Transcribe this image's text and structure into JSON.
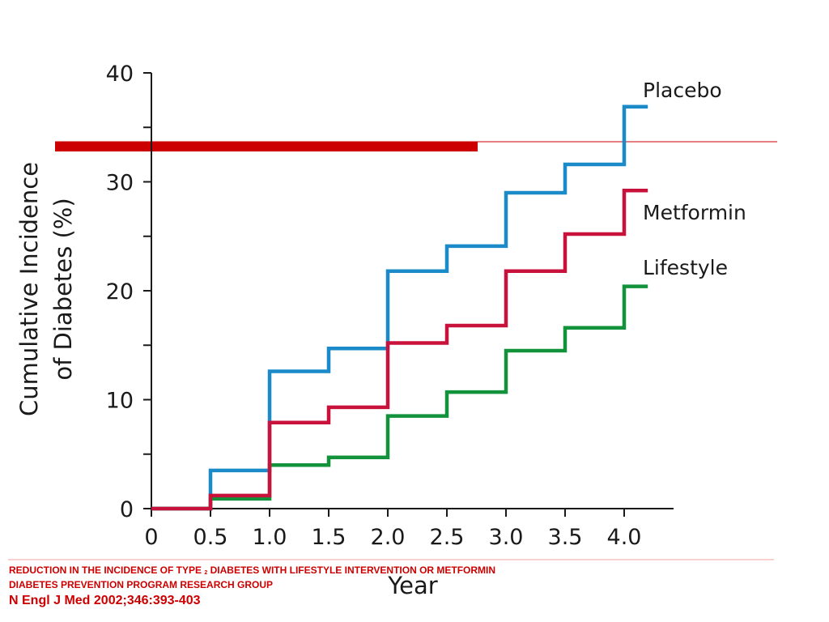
{
  "chart_data": {
    "type": "line",
    "step": true,
    "title": "",
    "xlabel": "Year",
    "ylabel_line1": "Cumulative Incidence",
    "ylabel_line2": "of Diabetes (%)",
    "x_ticks": [
      "0",
      "0.5",
      "1.0",
      "1.5",
      "2.0",
      "2.5",
      "3.0",
      "3.5",
      "4.0"
    ],
    "x_tick_values": [
      0,
      0.5,
      1.0,
      1.5,
      2.0,
      2.5,
      3.0,
      3.5,
      4.0
    ],
    "y_ticks": [
      "0",
      "10",
      "20",
      "30",
      "40"
    ],
    "y_tick_values": [
      0,
      10,
      20,
      30,
      40
    ],
    "xlim": [
      0,
      4.3
    ],
    "ylim": [
      0,
      40
    ],
    "grid": false,
    "series": [
      {
        "name": "Placebo",
        "color": "#1a8ac8",
        "x": [
          0,
          0.5,
          1.0,
          1.5,
          2.0,
          2.5,
          3.0,
          3.5,
          4.0,
          4.2
        ],
        "y": [
          0,
          3.5,
          12.6,
          14.7,
          21.8,
          24.1,
          29.0,
          31.6,
          36.9,
          36.9
        ]
      },
      {
        "name": "Metformin",
        "color": "#c8123c",
        "x": [
          0,
          0.5,
          1.0,
          1.5,
          2.0,
          2.5,
          3.0,
          3.5,
          4.0,
          4.2
        ],
        "y": [
          0,
          1.2,
          7.9,
          9.3,
          15.2,
          16.8,
          21.8,
          25.2,
          29.2,
          29.2
        ]
      },
      {
        "name": "Lifestyle",
        "color": "#12923a",
        "x": [
          0,
          0.5,
          1.0,
          1.5,
          2.0,
          2.5,
          3.0,
          3.5,
          4.0,
          4.2
        ],
        "y": [
          0,
          0.9,
          4.0,
          4.7,
          8.5,
          10.7,
          14.5,
          16.6,
          20.4,
          20.4
        ]
      }
    ]
  },
  "colors": {
    "banner_line": "#cc0000",
    "axis": "#1a1a1a"
  },
  "caption": {
    "line1_prefix": "REDUCTION IN THE INCIDENCE OF TYPE",
    "line1_sub": "2",
    "line1_suffix": "DIABETES WITH LIFESTYLE INTERVENTION OR METFORMIN",
    "line2": "DIABETES PREVENTION PROGRAM RESEARCH GROUP",
    "line3": "N Engl J Med 2002;346:393-403"
  }
}
